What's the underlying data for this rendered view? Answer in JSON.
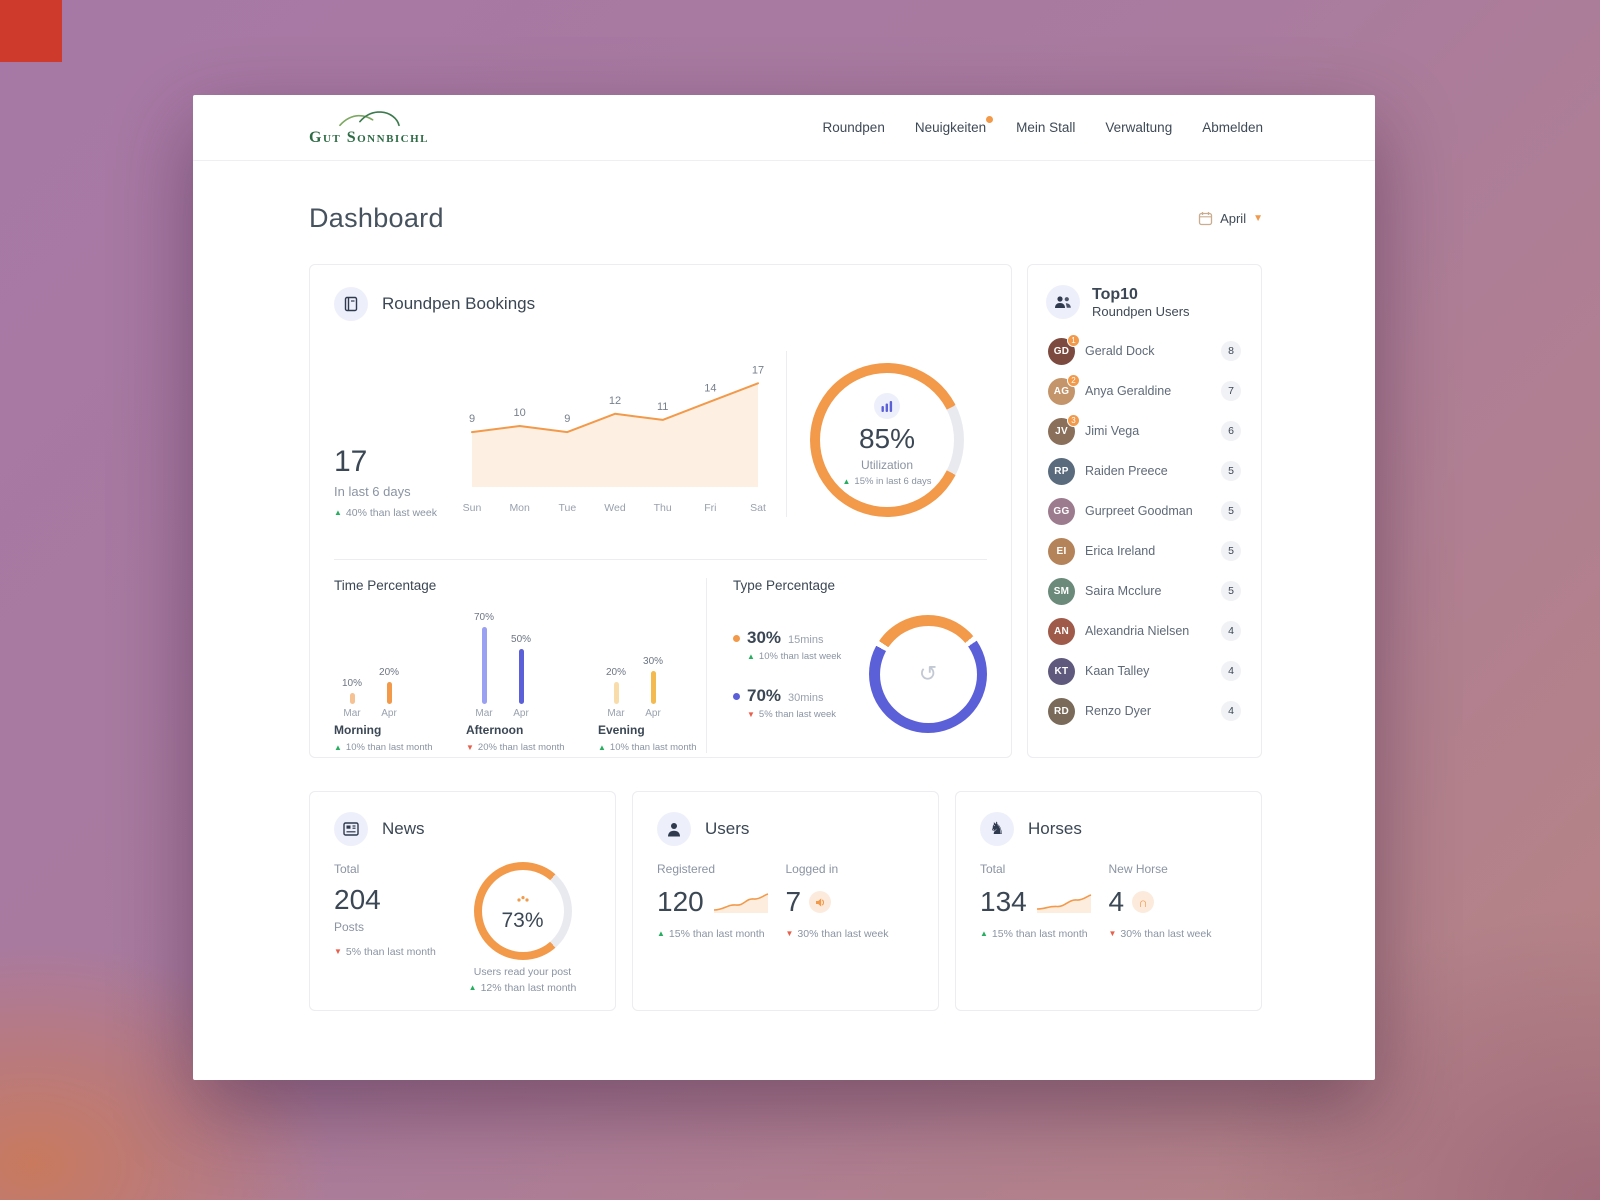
{
  "colors": {
    "accent": "#f2994a",
    "indigo": "#5b5fd8",
    "track": "#e9eaef",
    "up": "#27ae60",
    "down": "#e8604c"
  },
  "nav": {
    "brand": "Gut Sonnbichl",
    "items": [
      {
        "label": "Roundpen"
      },
      {
        "label": "Neuigkeiten",
        "badge": true
      },
      {
        "label": "Mein Stall"
      },
      {
        "label": "Verwaltung"
      },
      {
        "label": "Abmelden"
      }
    ]
  },
  "page": {
    "title": "Dashboard",
    "period": "April"
  },
  "bookings": {
    "title": "Roundpen Bookings",
    "stat": {
      "value": "17",
      "label": "In last 6 days",
      "dir": "up",
      "delta": "40% than last week"
    },
    "chart": {
      "type": "area",
      "days": [
        "Sun",
        "Mon",
        "Tue",
        "Wed",
        "Thu",
        "Fri",
        "Sat"
      ],
      "values": [
        9,
        10,
        9,
        12,
        11,
        14,
        17
      ]
    },
    "utilization": {
      "value": "85%",
      "label": "Utilization",
      "dir": "up",
      "delta": "15% in last 6 days"
    },
    "time": {
      "title": "Time Percentage",
      "groups": [
        {
          "name": "Morning",
          "months": [
            "Mar",
            "Apr"
          ],
          "values": [
            10,
            20
          ],
          "value_labels": [
            "10%",
            "20%"
          ],
          "colors": [
            "#f6c294",
            "#f2994a"
          ],
          "dir": "up",
          "delta": "10% than last month"
        },
        {
          "name": "Afternoon",
          "months": [
            "Mar",
            "Apr"
          ],
          "values": [
            70,
            50
          ],
          "value_labels": [
            "70%",
            "50%"
          ],
          "colors": [
            "#9aa0f2",
            "#5b5fd8"
          ],
          "dir": "down",
          "delta": "20% than last month"
        },
        {
          "name": "Evening",
          "months": [
            "Mar",
            "Apr"
          ],
          "values": [
            20,
            30
          ],
          "value_labels": [
            "20%",
            "30%"
          ],
          "colors": [
            "#f8ddaa",
            "#f3bb4f"
          ],
          "dir": "up",
          "delta": "10% than last month"
        }
      ]
    },
    "type": {
      "title": "Type Percentage",
      "items": [
        {
          "pct": "30%",
          "label": "15mins",
          "color": "#f2994a",
          "dir": "up",
          "delta": "10% than last week"
        },
        {
          "pct": "70%",
          "label": "30mins",
          "color": "#5b5fd8",
          "dir": "down",
          "delta": "5% than last week"
        }
      ]
    }
  },
  "top10": {
    "title": "Top10",
    "subtitle": "Roundpen Users",
    "users": [
      {
        "rank": "1",
        "name": "Gerald Dock",
        "count": "8"
      },
      {
        "rank": "2",
        "name": "Anya Geraldine",
        "count": "7"
      },
      {
        "rank": "3",
        "name": "Jimi Vega",
        "count": "6"
      },
      {
        "name": "Raiden Preece",
        "count": "5"
      },
      {
        "name": "Gurpreet Goodman",
        "count": "5"
      },
      {
        "name": "Erica Ireland",
        "count": "5"
      },
      {
        "name": "Saira Mcclure",
        "count": "5"
      },
      {
        "name": "Alexandria Nielsen",
        "count": "4"
      },
      {
        "name": "Kaan Talley",
        "count": "4"
      },
      {
        "name": "Renzo Dyer",
        "count": "4"
      }
    ]
  },
  "news": {
    "title": "News",
    "total_label": "Total",
    "total": "204",
    "unit": "Posts",
    "dir": "down",
    "delta": "5% than last month",
    "gauge": {
      "value": "73%",
      "caption": "Users read your post",
      "dir": "up",
      "delta": "12% than last month"
    }
  },
  "users": {
    "title": "Users",
    "registered": {
      "label": "Registered",
      "value": "120",
      "dir": "up",
      "delta": "15% than last month"
    },
    "logged": {
      "label": "Logged in",
      "value": "7",
      "dir": "down",
      "delta": "30% than last week"
    }
  },
  "horses": {
    "title": "Horses",
    "total": {
      "label": "Total",
      "value": "134",
      "dir": "up",
      "delta": "15% than last month"
    },
    "new": {
      "label": "New Horse",
      "value": "4",
      "dir": "down",
      "delta": "30% than last week"
    }
  }
}
